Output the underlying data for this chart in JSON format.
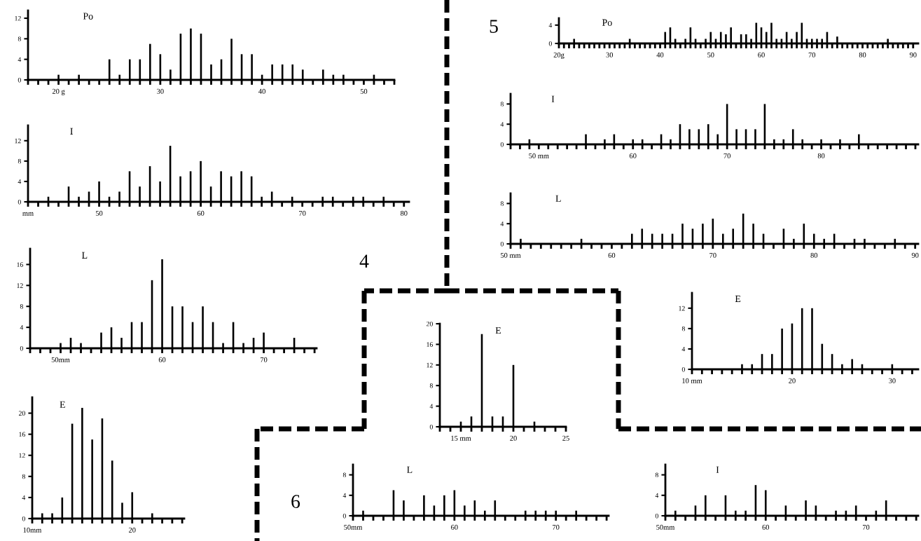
{
  "chart_data": [
    {
      "type": "bar",
      "title": "Po",
      "color": "#000000",
      "x": [
        20,
        22,
        25,
        26,
        27,
        28,
        29,
        30,
        31,
        32,
        33,
        34,
        35,
        36,
        37,
        38,
        39,
        40,
        41,
        42,
        43,
        44,
        46,
        47,
        48,
        51
      ],
      "values": [
        1,
        1,
        4,
        1,
        4,
        4,
        7,
        5,
        2,
        9,
        10,
        9,
        3,
        4,
        8,
        5,
        5,
        1,
        3,
        3,
        3,
        2,
        2,
        1,
        1,
        1
      ],
      "xlim": [
        17,
        53
      ],
      "ylim": [
        0,
        13.5
      ],
      "yticks": [
        0,
        4,
        8,
        12
      ],
      "xticks": [
        {
          "value": 17,
          "label": null
        },
        {
          "value": 18,
          "label": null
        },
        {
          "value": 19,
          "label": null
        },
        {
          "value": 20,
          "label": "20 g"
        },
        {
          "value": 21,
          "label": null
        },
        {
          "value": 22,
          "label": null
        },
        {
          "value": 23,
          "label": null
        },
        {
          "value": 24,
          "label": null
        },
        {
          "value": 25,
          "label": null
        },
        {
          "value": 26,
          "label": null
        },
        {
          "value": 27,
          "label": null
        },
        {
          "value": 28,
          "label": null
        },
        {
          "value": 29,
          "label": null
        },
        30,
        {
          "value": 31,
          "label": null
        },
        {
          "value": 32,
          "label": null
        },
        {
          "value": 33,
          "label": null
        },
        {
          "value": 34,
          "label": null
        },
        {
          "value": 35,
          "label": null
        },
        {
          "value": 36,
          "label": null
        },
        {
          "value": 37,
          "label": null
        },
        {
          "value": 38,
          "label": null
        },
        {
          "value": 39,
          "label": null
        },
        40,
        {
          "value": 41,
          "label": null
        },
        {
          "value": 42,
          "label": null
        },
        {
          "value": 43,
          "label": null
        },
        {
          "value": 44,
          "label": null
        },
        {
          "value": 45,
          "label": null
        },
        {
          "value": 46,
          "label": null
        },
        {
          "value": 47,
          "label": null
        },
        {
          "value": 48,
          "label": null
        },
        {
          "value": 49,
          "label": null
        },
        50,
        {
          "value": 51,
          "label": null
        },
        {
          "value": 52,
          "label": null
        },
        {
          "value": 53,
          "label": null
        }
      ]
    },
    {
      "type": "bar",
      "title": "I",
      "color": "#000000",
      "x": [
        45,
        47,
        48,
        49,
        50,
        51,
        52,
        53,
        54,
        55,
        56,
        57,
        58,
        59,
        60,
        61,
        62,
        63,
        64,
        65,
        66,
        67,
        69,
        72,
        73,
        75,
        76,
        78
      ],
      "values": [
        1,
        3,
        1,
        2,
        4,
        1,
        2,
        6,
        3,
        7,
        4,
        11,
        5,
        6,
        8,
        3,
        6,
        5,
        6,
        5,
        1,
        2,
        1,
        1,
        1,
        1,
        1,
        1
      ],
      "xlim": [
        43,
        80.5
      ],
      "ylim": [
        0,
        15
      ],
      "yticks": [
        0,
        4,
        8,
        12
      ],
      "xticks": [
        {
          "value": 43,
          "label": "mm"
        },
        {
          "value": 44,
          "label": null
        },
        {
          "value": 45,
          "label": null
        },
        {
          "value": 46,
          "label": null
        },
        {
          "value": 47,
          "label": null
        },
        {
          "value": 48,
          "label": null
        },
        {
          "value": 49,
          "label": null
        },
        50,
        {
          "value": 51,
          "label": null
        },
        {
          "value": 52,
          "label": null
        },
        {
          "value": 53,
          "label": null
        },
        {
          "value": 54,
          "label": null
        },
        {
          "value": 55,
          "label": null
        },
        {
          "value": 56,
          "label": null
        },
        {
          "value": 57,
          "label": null
        },
        {
          "value": 58,
          "label": null
        },
        {
          "value": 59,
          "label": null
        },
        60,
        {
          "value": 61,
          "label": null
        },
        {
          "value": 62,
          "label": null
        },
        {
          "value": 63,
          "label": null
        },
        {
          "value": 64,
          "label": null
        },
        {
          "value": 65,
          "label": null
        },
        {
          "value": 66,
          "label": null
        },
        {
          "value": 67,
          "label": null
        },
        {
          "value": 68,
          "label": null
        },
        {
          "value": 69,
          "label": null
        },
        70,
        {
          "value": 71,
          "label": null
        },
        {
          "value": 72,
          "label": null
        },
        {
          "value": 73,
          "label": null
        },
        {
          "value": 74,
          "label": null
        },
        {
          "value": 75,
          "label": null
        },
        {
          "value": 76,
          "label": null
        },
        {
          "value": 77,
          "label": null
        },
        {
          "value": 78,
          "label": null
        },
        {
          "value": 79,
          "label": null
        },
        80
      ]
    },
    {
      "type": "bar",
      "title": "L",
      "color": "#000000",
      "x": [
        50,
        51,
        52,
        54,
        55,
        56,
        57,
        58,
        59,
        60,
        61,
        62,
        63,
        64,
        65,
        66,
        67,
        68,
        69,
        70,
        73
      ],
      "values": [
        1,
        2,
        1,
        3,
        4,
        2,
        5,
        5,
        13,
        17,
        8,
        8,
        5,
        8,
        5,
        1,
        5,
        1,
        2,
        3,
        2
      ],
      "xlim": [
        47,
        75.2
      ],
      "ylim": [
        0,
        19
      ],
      "yticks": [
        0,
        4,
        8,
        12,
        16
      ],
      "xticks": [
        {
          "value": 47,
          "label": null
        },
        {
          "value": 48,
          "label": null
        },
        {
          "value": 49,
          "label": null
        },
        {
          "value": 50,
          "label": "50mm"
        },
        {
          "value": 51,
          "label": null
        },
        {
          "value": 52,
          "label": null
        },
        {
          "value": 53,
          "label": null
        },
        {
          "value": 54,
          "label": null
        },
        {
          "value": 55,
          "label": null
        },
        {
          "value": 56,
          "label": null
        },
        {
          "value": 57,
          "label": null
        },
        {
          "value": 58,
          "label": null
        },
        {
          "value": 59,
          "label": null
        },
        60,
        {
          "value": 61,
          "label": null
        },
        {
          "value": 62,
          "label": null
        },
        {
          "value": 63,
          "label": null
        },
        {
          "value": 64,
          "label": null
        },
        {
          "value": 65,
          "label": null
        },
        {
          "value": 66,
          "label": null
        },
        {
          "value": 67,
          "label": null
        },
        {
          "value": 68,
          "label": null
        },
        {
          "value": 69,
          "label": null
        },
        70,
        {
          "value": 71,
          "label": null
        },
        {
          "value": 72,
          "label": null
        },
        {
          "value": 73,
          "label": null
        },
        {
          "value": 74,
          "label": null
        },
        {
          "value": 75,
          "label": null
        }
      ]
    },
    {
      "type": "bar",
      "title": "E",
      "color": "#000000",
      "x": [
        11,
        12,
        13,
        14,
        15,
        16,
        17,
        18,
        19,
        20,
        22
      ],
      "values": [
        1,
        1,
        4,
        18,
        21,
        15,
        19,
        11,
        3,
        5,
        1
      ],
      "xlim": [
        10,
        25.2
      ],
      "ylim": [
        0,
        23
      ],
      "yticks": [
        0,
        4,
        8,
        12,
        16,
        20
      ],
      "xticks": [
        {
          "value": 10,
          "label": "10mm"
        },
        {
          "value": 11,
          "label": null
        },
        {
          "value": 12,
          "label": null
        },
        {
          "value": 13,
          "label": null
        },
        {
          "value": 14,
          "label": null
        },
        {
          "value": 15,
          "label": null
        },
        {
          "value": 16,
          "label": null
        },
        {
          "value": 17,
          "label": null
        },
        {
          "value": 18,
          "label": null
        },
        {
          "value": 19,
          "label": null
        },
        20,
        {
          "value": 21,
          "label": null
        },
        {
          "value": 22,
          "label": null
        },
        {
          "value": 23,
          "label": null
        },
        {
          "value": 24,
          "label": null
        },
        {
          "value": 25,
          "label": null
        }
      ]
    },
    {
      "type": "bar",
      "title": "Po",
      "color": "#000000",
      "x": [
        23,
        34,
        41,
        42,
        43,
        45,
        46,
        47,
        49,
        50,
        51,
        52,
        53,
        54,
        56,
        57,
        58,
        59,
        60,
        61,
        62,
        63,
        64,
        65,
        66,
        67,
        68,
        69,
        70,
        71,
        72,
        73,
        75,
        85
      ],
      "values": [
        1,
        1,
        2.5,
        3.5,
        1,
        1,
        3.5,
        1,
        1,
        2.5,
        1,
        2.5,
        2,
        3.5,
        2,
        2,
        1,
        4.5,
        3.5,
        2.5,
        4.5,
        1,
        1,
        2.5,
        1,
        2.5,
        4.5,
        1,
        1,
        1,
        1,
        2.5,
        1.5,
        1
      ],
      "xlim": [
        20,
        91
      ],
      "ylim": [
        0,
        5.5
      ],
      "yticks": [
        0,
        4
      ],
      "xticks": [
        {
          "value": 20,
          "label": "20g"
        },
        {
          "value": 21,
          "label": null
        },
        {
          "value": 22,
          "label": null
        },
        {
          "value": 23,
          "label": null
        },
        {
          "value": 24,
          "label": null
        },
        {
          "value": 25,
          "label": null
        },
        {
          "value": 26,
          "label": null
        },
        {
          "value": 27,
          "label": null
        },
        {
          "value": 28,
          "label": null
        },
        {
          "value": 29,
          "label": null
        },
        30,
        {
          "value": 31,
          "label": null
        },
        {
          "value": 32,
          "label": null
        },
        {
          "value": 33,
          "label": null
        },
        {
          "value": 34,
          "label": null
        },
        {
          "value": 35,
          "label": null
        },
        {
          "value": 36,
          "label": null
        },
        {
          "value": 37,
          "label": null
        },
        {
          "value": 38,
          "label": null
        },
        {
          "value": 39,
          "label": null
        },
        40,
        {
          "value": 41,
          "label": null
        },
        {
          "value": 42,
          "label": null
        },
        {
          "value": 43,
          "label": null
        },
        {
          "value": 44,
          "label": null
        },
        {
          "value": 45,
          "label": null
        },
        {
          "value": 46,
          "label": null
        },
        {
          "value": 47,
          "label": null
        },
        {
          "value": 48,
          "label": null
        },
        {
          "value": 49,
          "label": null
        },
        50,
        {
          "value": 51,
          "label": null
        },
        {
          "value": 52,
          "label": null
        },
        {
          "value": 53,
          "label": null
        },
        {
          "value": 54,
          "label": null
        },
        {
          "value": 55,
          "label": null
        },
        {
          "value": 56,
          "label": null
        },
        {
          "value": 57,
          "label": null
        },
        {
          "value": 58,
          "label": null
        },
        {
          "value": 59,
          "label": null
        },
        60,
        {
          "value": 61,
          "label": null
        },
        {
          "value": 62,
          "label": null
        },
        {
          "value": 63,
          "label": null
        },
        {
          "value": 64,
          "label": null
        },
        {
          "value": 65,
          "label": null
        },
        {
          "value": 66,
          "label": null
        },
        {
          "value": 67,
          "label": null
        },
        {
          "value": 68,
          "label": null
        },
        {
          "value": 69,
          "label": null
        },
        70,
        {
          "value": 71,
          "label": null
        },
        {
          "value": 72,
          "label": null
        },
        {
          "value": 73,
          "label": null
        },
        {
          "value": 74,
          "label": null
        },
        {
          "value": 75,
          "label": null
        },
        {
          "value": 76,
          "label": null
        },
        {
          "value": 77,
          "label": null
        },
        {
          "value": 78,
          "label": null
        },
        {
          "value": 79,
          "label": null
        },
        80,
        {
          "value": 81,
          "label": null
        },
        {
          "value": 82,
          "label": null
        },
        {
          "value": 83,
          "label": null
        },
        {
          "value": 84,
          "label": null
        },
        {
          "value": 85,
          "label": null
        },
        {
          "value": 86,
          "label": null
        },
        {
          "value": 87,
          "label": null
        },
        {
          "value": 88,
          "label": null
        },
        {
          "value": 89,
          "label": null
        },
        90
      ]
    },
    {
      "type": "bar",
      "title": "I",
      "color": "#000000",
      "x": [
        49,
        55,
        57,
        58,
        60,
        61,
        63,
        64,
        65,
        66,
        67,
        68,
        69,
        70,
        71,
        72,
        73,
        74,
        75,
        76,
        77,
        78,
        80,
        82,
        84
      ],
      "values": [
        1,
        2,
        1,
        2,
        1,
        1,
        2,
        1,
        4,
        3,
        3,
        4,
        2,
        8,
        3,
        3,
        3,
        8,
        1,
        1,
        3,
        1,
        1,
        1,
        2
      ],
      "xlim": [
        47,
        90.3
      ],
      "ylim": [
        0,
        10
      ],
      "yticks": [
        0,
        4,
        8
      ],
      "xticks": [
        {
          "value": 47,
          "label": null
        },
        {
          "value": 48,
          "label": null
        },
        {
          "value": 49,
          "label": null
        },
        {
          "value": 50,
          "label": "50 mm"
        },
        {
          "value": 51,
          "label": null
        },
        {
          "value": 52,
          "label": null
        },
        {
          "value": 53,
          "label": null
        },
        {
          "value": 54,
          "label": null
        },
        {
          "value": 55,
          "label": null
        },
        {
          "value": 56,
          "label": null
        },
        {
          "value": 57,
          "label": null
        },
        {
          "value": 58,
          "label": null
        },
        {
          "value": 59,
          "label": null
        },
        60,
        {
          "value": 61,
          "label": null
        },
        {
          "value": 62,
          "label": null
        },
        {
          "value": 63,
          "label": null
        },
        {
          "value": 64,
          "label": null
        },
        {
          "value": 65,
          "label": null
        },
        {
          "value": 66,
          "label": null
        },
        {
          "value": 67,
          "label": null
        },
        {
          "value": 68,
          "label": null
        },
        {
          "value": 69,
          "label": null
        },
        70,
        {
          "value": 71,
          "label": null
        },
        {
          "value": 72,
          "label": null
        },
        {
          "value": 73,
          "label": null
        },
        {
          "value": 74,
          "label": null
        },
        {
          "value": 75,
          "label": null
        },
        {
          "value": 76,
          "label": null
        },
        {
          "value": 77,
          "label": null
        },
        {
          "value": 78,
          "label": null
        },
        {
          "value": 79,
          "label": null
        },
        80,
        {
          "value": 81,
          "label": null
        },
        {
          "value": 82,
          "label": null
        },
        {
          "value": 83,
          "label": null
        },
        {
          "value": 84,
          "label": null
        },
        {
          "value": 85,
          "label": null
        },
        {
          "value": 86,
          "label": null
        },
        {
          "value": 87,
          "label": null
        },
        {
          "value": 88,
          "label": null
        },
        {
          "value": 89,
          "label": null
        },
        {
          "value": 90,
          "label": null
        }
      ]
    },
    {
      "type": "bar",
      "title": "L",
      "color": "#000000",
      "x": [
        51,
        57,
        62,
        63,
        64,
        65,
        66,
        67,
        68,
        69,
        70,
        71,
        72,
        73,
        74,
        75,
        77,
        78,
        79,
        80,
        81,
        82,
        84,
        85,
        88
      ],
      "values": [
        1,
        1,
        2,
        3,
        2,
        2,
        2,
        4,
        3,
        4,
        5,
        2,
        3,
        6,
        4,
        2,
        3,
        1,
        4,
        2,
        1,
        2,
        1,
        1,
        1
      ],
      "xlim": [
        50,
        90.3
      ],
      "ylim": [
        0,
        10
      ],
      "yticks": [
        0,
        4,
        8
      ],
      "xticks": [
        {
          "value": 50,
          "label": "50 mm"
        },
        {
          "value": 51,
          "label": null
        },
        {
          "value": 52,
          "label": null
        },
        {
          "value": 53,
          "label": null
        },
        {
          "value": 54,
          "label": null
        },
        {
          "value": 55,
          "label": null
        },
        {
          "value": 56,
          "label": null
        },
        {
          "value": 57,
          "label": null
        },
        {
          "value": 58,
          "label": null
        },
        {
          "value": 59,
          "label": null
        },
        60,
        {
          "value": 61,
          "label": null
        },
        {
          "value": 62,
          "label": null
        },
        {
          "value": 63,
          "label": null
        },
        {
          "value": 64,
          "label": null
        },
        {
          "value": 65,
          "label": null
        },
        {
          "value": 66,
          "label": null
        },
        {
          "value": 67,
          "label": null
        },
        {
          "value": 68,
          "label": null
        },
        {
          "value": 69,
          "label": null
        },
        70,
        {
          "value": 71,
          "label": null
        },
        {
          "value": 72,
          "label": null
        },
        {
          "value": 73,
          "label": null
        },
        {
          "value": 74,
          "label": null
        },
        {
          "value": 75,
          "label": null
        },
        {
          "value": 76,
          "label": null
        },
        {
          "value": 77,
          "label": null
        },
        {
          "value": 78,
          "label": null
        },
        {
          "value": 79,
          "label": null
        },
        80,
        {
          "value": 81,
          "label": null
        },
        {
          "value": 82,
          "label": null
        },
        {
          "value": 83,
          "label": null
        },
        {
          "value": 84,
          "label": null
        },
        {
          "value": 85,
          "label": null
        },
        {
          "value": 86,
          "label": null
        },
        {
          "value": 87,
          "label": null
        },
        {
          "value": 88,
          "label": null
        },
        {
          "value": 89,
          "label": null
        },
        90
      ]
    },
    {
      "type": "bar",
      "title": "E",
      "color": "#000000",
      "x": [
        15,
        16,
        17,
        18,
        19,
        20,
        22
      ],
      "values": [
        1,
        2,
        18,
        2,
        2,
        12,
        1
      ],
      "xlim": [
        13,
        25
      ],
      "ylim": [
        0,
        20
      ],
      "yticks": [
        0,
        4,
        8,
        12,
        16,
        20
      ],
      "xticks": [
        {
          "value": 13,
          "label": null
        },
        {
          "value": 14,
          "label": null
        },
        {
          "value": 15,
          "label": "15 mm"
        },
        {
          "value": 16,
          "label": null
        },
        {
          "value": 17,
          "label": null
        },
        {
          "value": 18,
          "label": null
        },
        {
          "value": 19,
          "label": null
        },
        20,
        {
          "value": 21,
          "label": null
        },
        {
          "value": 22,
          "label": null
        },
        {
          "value": 23,
          "label": null
        },
        {
          "value": 24,
          "label": null
        },
        25
      ]
    },
    {
      "type": "bar",
      "title": "E",
      "color": "#000000",
      "x": [
        15,
        16,
        17,
        18,
        19,
        20,
        21,
        22,
        23,
        24,
        25,
        26,
        27,
        30
      ],
      "values": [
        1,
        1,
        3,
        3,
        8,
        9,
        12,
        12,
        5,
        3,
        1,
        2,
        1,
        1
      ],
      "xlim": [
        10,
        32.6
      ],
      "ylim": [
        0,
        15
      ],
      "yticks": [
        0,
        4,
        8,
        12
      ],
      "xticks": [
        {
          "value": 10,
          "label": "10 mm"
        },
        {
          "value": 11,
          "label": null
        },
        {
          "value": 12,
          "label": null
        },
        {
          "value": 13,
          "label": null
        },
        {
          "value": 14,
          "label": null
        },
        {
          "value": 15,
          "label": null
        },
        {
          "value": 16,
          "label": null
        },
        {
          "value": 17,
          "label": null
        },
        {
          "value": 18,
          "label": null
        },
        {
          "value": 19,
          "label": null
        },
        20,
        {
          "value": 21,
          "label": null
        },
        {
          "value": 22,
          "label": null
        },
        {
          "value": 23,
          "label": null
        },
        {
          "value": 24,
          "label": null
        },
        {
          "value": 25,
          "label": null
        },
        {
          "value": 26,
          "label": null
        },
        {
          "value": 27,
          "label": null
        },
        {
          "value": 28,
          "label": null
        },
        {
          "value": 29,
          "label": null
        },
        30,
        {
          "value": 31,
          "label": null
        },
        {
          "value": 32,
          "label": null
        }
      ]
    },
    {
      "type": "bar",
      "title": "L",
      "color": "#000000",
      "x": [
        51,
        54,
        55,
        57,
        58,
        59,
        60,
        61,
        62,
        63,
        64,
        67,
        68,
        69,
        70,
        72
      ],
      "values": [
        1,
        5,
        3,
        4,
        2,
        4,
        5,
        2,
        3,
        1,
        3,
        1,
        1,
        1,
        1,
        1
      ],
      "xlim": [
        50,
        75.2
      ],
      "ylim": [
        0,
        10
      ],
      "yticks": [
        0,
        4,
        8
      ],
      "xticks": [
        {
          "value": 50,
          "label": "50mm"
        },
        {
          "value": 51,
          "label": null
        },
        {
          "value": 52,
          "label": null
        },
        {
          "value": 53,
          "label": null
        },
        {
          "value": 54,
          "label": null
        },
        {
          "value": 55,
          "label": null
        },
        {
          "value": 56,
          "label": null
        },
        {
          "value": 57,
          "label": null
        },
        {
          "value": 58,
          "label": null
        },
        {
          "value": 59,
          "label": null
        },
        60,
        {
          "value": 61,
          "label": null
        },
        {
          "value": 62,
          "label": null
        },
        {
          "value": 63,
          "label": null
        },
        {
          "value": 64,
          "label": null
        },
        {
          "value": 65,
          "label": null
        },
        {
          "value": 66,
          "label": null
        },
        {
          "value": 67,
          "label": null
        },
        {
          "value": 68,
          "label": null
        },
        {
          "value": 69,
          "label": null
        },
        70,
        {
          "value": 71,
          "label": null
        },
        {
          "value": 72,
          "label": null
        },
        {
          "value": 73,
          "label": null
        },
        {
          "value": 74,
          "label": null
        },
        {
          "value": 75,
          "label": null
        }
      ]
    },
    {
      "type": "bar",
      "title": "I",
      "color": "#000000",
      "x": [
        51,
        53,
        54,
        56,
        57,
        58,
        59,
        60,
        62,
        64,
        65,
        67,
        68,
        69,
        71,
        72
      ],
      "values": [
        1,
        2,
        4,
        4,
        1,
        1,
        6,
        5,
        2,
        3,
        2,
        1,
        1,
        2,
        1,
        3
      ],
      "xlim": [
        50,
        75.2
      ],
      "ylim": [
        0,
        10
      ],
      "yticks": [
        0,
        4,
        8
      ],
      "xticks": [
        {
          "value": 50,
          "label": "50mm"
        },
        {
          "value": 51,
          "label": null
        },
        {
          "value": 52,
          "label": null
        },
        {
          "value": 53,
          "label": null
        },
        {
          "value": 54,
          "label": null
        },
        {
          "value": 55,
          "label": null
        },
        {
          "value": 56,
          "label": null
        },
        {
          "value": 57,
          "label": null
        },
        {
          "value": 58,
          "label": null
        },
        {
          "value": 59,
          "label": null
        },
        60,
        {
          "value": 61,
          "label": null
        },
        {
          "value": 62,
          "label": null
        },
        {
          "value": 63,
          "label": null
        },
        {
          "value": 64,
          "label": null
        },
        {
          "value": 65,
          "label": null
        },
        {
          "value": 66,
          "label": null
        },
        {
          "value": 67,
          "label": null
        },
        {
          "value": 68,
          "label": null
        },
        {
          "value": 69,
          "label": null
        },
        70,
        {
          "value": 71,
          "label": null
        },
        {
          "value": 72,
          "label": null
        },
        {
          "value": 73,
          "label": null
        },
        {
          "value": 74,
          "label": null
        },
        {
          "value": 75,
          "label": null
        }
      ]
    },
    {
      "type": "other",
      "annotations": [
        "4",
        "5",
        "6"
      ]
    }
  ]
}
